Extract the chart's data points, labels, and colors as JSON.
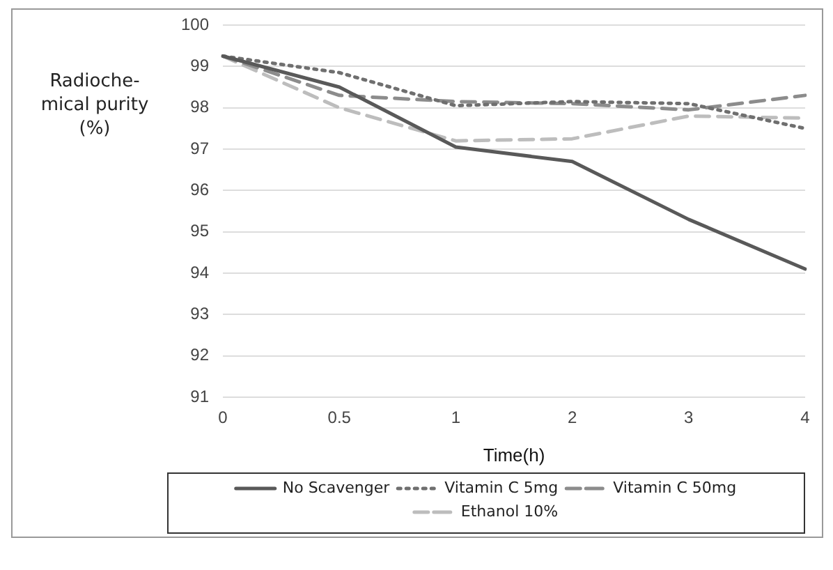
{
  "chart_data": {
    "type": "line",
    "xlabel": "Time(h)",
    "ylabel": "Radioche-\nmical purity\n(%)",
    "categories": [
      "0",
      "0.5",
      "1",
      "2",
      "3",
      "4"
    ],
    "series": [
      {
        "name": "No Scavenger",
        "color": "#595959",
        "line_style": "solid",
        "values": [
          99.25,
          98.5,
          97.05,
          96.7,
          95.3,
          94.1
        ]
      },
      {
        "name": "Vitamin C 5mg",
        "color": "#6f6f6f",
        "line_style": "dotted",
        "values": [
          99.25,
          98.85,
          98.05,
          98.15,
          98.1,
          97.5
        ]
      },
      {
        "name": "Vitamin C 50mg",
        "color": "#8c8c8c",
        "line_style": "dashed",
        "values": [
          99.25,
          98.3,
          98.15,
          98.1,
          97.95,
          98.3
        ]
      },
      {
        "name": "Ethanol 10%",
        "color": "#bdbdbd",
        "line_style": "dashed",
        "values": [
          99.25,
          98.0,
          97.2,
          97.25,
          97.8,
          97.75
        ]
      }
    ],
    "ylim": [
      91,
      100
    ],
    "yticks": [
      91,
      92,
      93,
      94,
      95,
      96,
      97,
      98,
      99,
      100
    ],
    "grid": "y",
    "legend": "bottom",
    "marker": "none"
  }
}
